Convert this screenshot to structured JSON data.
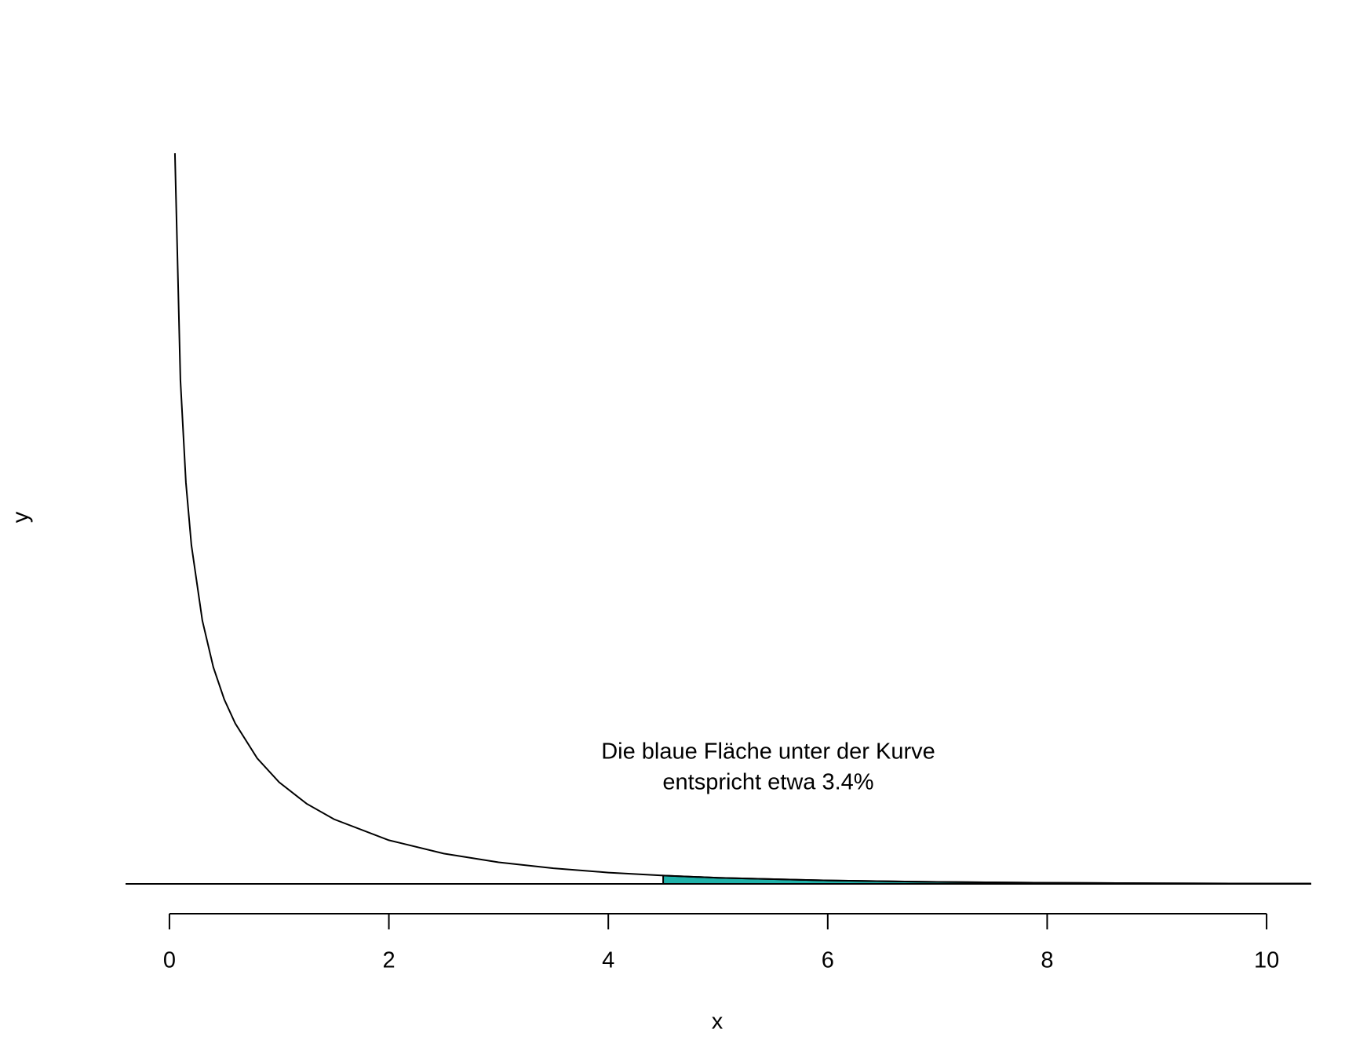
{
  "chart_data": {
    "type": "area-under-curve",
    "x_label": "x",
    "y_label": "y",
    "annotation": [
      "Die blaue Fläche unter der Kurve",
      "entspricht etwa 3.4%"
    ],
    "x": [
      0.05,
      0.1,
      0.15,
      0.2,
      0.3,
      0.4,
      0.5,
      0.6,
      0.8,
      1,
      1.25,
      1.5,
      2,
      2.5,
      3,
      3.5,
      4,
      4.5,
      5,
      6,
      7,
      8,
      9,
      10,
      10.4
    ],
    "series": [
      {
        "color": "#000000",
        "values": [
          1.74,
          1.2,
          0.956,
          0.807,
          0.627,
          0.516,
          0.439,
          0.382,
          0.299,
          0.242,
          0.191,
          0.154,
          0.104,
          0.0723,
          0.0514,
          0.0371,
          0.027,
          0.0198,
          0.0146,
          0.0081,
          0.0046,
          0.0026,
          0.0015,
          0.00085,
          0.0007
        ]
      }
    ],
    "shade_from": 4.5,
    "shade_color": "#20b2aa",
    "hline": 0,
    "xlim": [
      -0.4,
      10.4
    ],
    "xticks": [
      0,
      2,
      4,
      6,
      8,
      10
    ],
    "ylim": [
      -0.071,
      1.845
    ]
  }
}
